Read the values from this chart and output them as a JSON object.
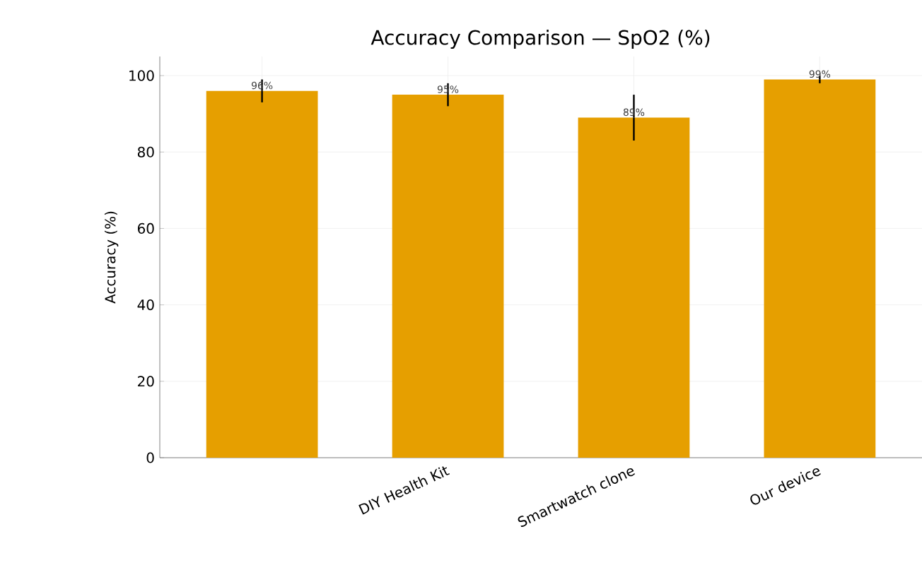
{
  "chart_data": {
    "type": "bar",
    "title": "Accuracy Comparison — SpO2 (%)",
    "ylabel": "Accuracy (%)",
    "categories": [
      null,
      "DIY Health Kit",
      "Smartwatch clone",
      "Our device"
    ],
    "values": [
      96,
      95,
      89,
      99
    ],
    "errors": [
      3,
      3,
      6,
      1
    ],
    "value_labels": [
      "96%",
      "95%",
      "89%",
      "99%"
    ],
    "color": "#e69f00",
    "ylim": [
      0,
      105
    ],
    "yticks": [
      0,
      20,
      40,
      60,
      80,
      100
    ],
    "grid": true
  }
}
